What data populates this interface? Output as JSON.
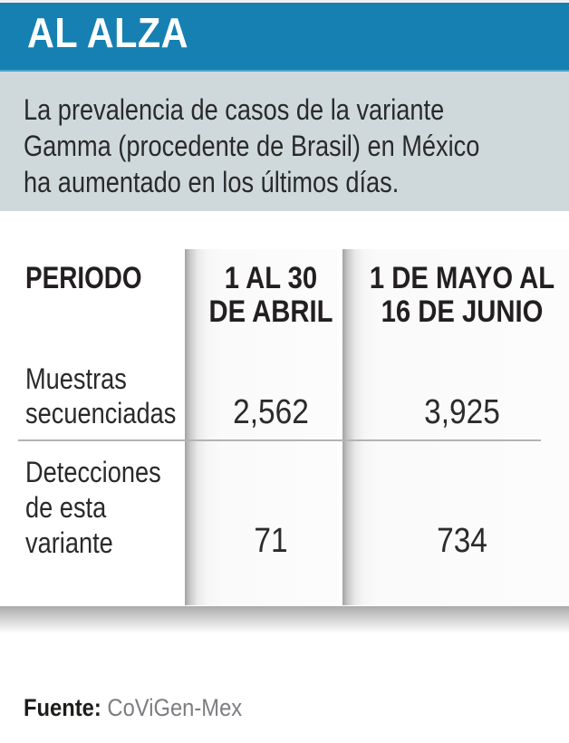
{
  "colors": {
    "header_bg": "#1680b2",
    "header_rule": "#4ba2c6",
    "header_text": "#ffffff",
    "intro_bg": "#cfd9dc",
    "body_text": "#231f20",
    "source_text": "#7c7d80",
    "column_shadow": "#a3a3a3"
  },
  "header": {
    "title": "AL ALZA"
  },
  "intro": {
    "line1": "La prevalencia de casos de la variante",
    "line2": "Gamma (procedente de Brasil) en México",
    "line3": "ha aumentado en los últimos días."
  },
  "table": {
    "corner": "PERIODO",
    "col_april": {
      "line1": "1 AL 30",
      "line2": "DE ABRIL"
    },
    "col_mayo": {
      "line1": "1 DE MAYO AL",
      "line2": "16 DE JUNIO"
    },
    "row_muestras": {
      "line1": "Muestras",
      "line2": "secuenciadas",
      "april": "2,562",
      "mayo": "3,925"
    },
    "row_detecciones": {
      "line1": "Detecciones",
      "line2": "de esta",
      "line3": "variante",
      "april": "71",
      "mayo": "734"
    }
  },
  "footer": {
    "label": "Fuente:",
    "source": "CoViGen-Mex"
  },
  "chart_data": {
    "type": "table",
    "title": "AL ALZA",
    "subtitle": "La prevalencia de casos de la variante Gamma (procedente de Brasil) en México ha aumentado en los últimos días.",
    "columns": [
      "PERIODO",
      "1 AL 30 DE ABRIL",
      "1 DE MAYO AL 16 DE JUNIO"
    ],
    "rows": [
      {
        "label": "Muestras secuenciadas",
        "values": [
          2562,
          3925
        ]
      },
      {
        "label": "Detecciones de esta variante",
        "values": [
          71,
          734
        ]
      }
    ],
    "source": "CoViGen-Mex"
  }
}
